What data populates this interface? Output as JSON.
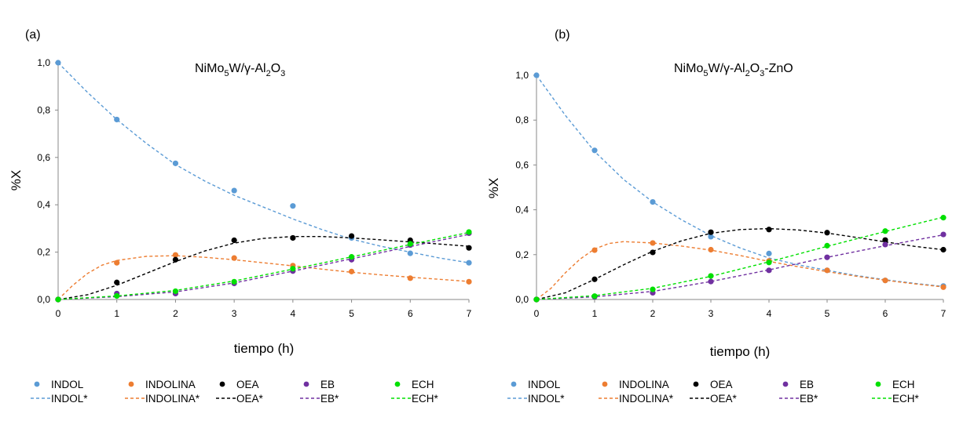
{
  "chart_data": [
    {
      "panel_label": "(a)",
      "type": "scatter",
      "title": {
        "base1": "NiMo",
        "sub1": "5",
        "base2": "W/γ-Al",
        "sub2": "2",
        "base3": "O",
        "sub3": "3",
        "base4": ""
      },
      "xlabel": "tiempo (h)",
      "ylabel": "%X",
      "xlim": [
        0,
        7
      ],
      "ylim": [
        0,
        1
      ],
      "xticks": [
        "0",
        "1",
        "2",
        "3",
        "4",
        "5",
        "6",
        "7"
      ],
      "yticks": [
        "0,0",
        "0,2",
        "0,4",
        "0,6",
        "0,8",
        "1,0"
      ],
      "x": [
        0,
        1,
        2,
        3,
        4,
        5,
        6,
        7
      ],
      "series": [
        {
          "name": "INDOL",
          "fit_name": "INDOL*",
          "color": "#5b9bd5",
          "values": [
            1.0,
            0.76,
            0.575,
            0.46,
            0.395,
            0.26,
            0.195,
            0.155
          ],
          "fit": [
            [
              0,
              1.0
            ],
            [
              0.5,
              0.875
            ],
            [
              1,
              0.76
            ],
            [
              1.5,
              0.66
            ],
            [
              2,
              0.57
            ],
            [
              2.5,
              0.5
            ],
            [
              3,
              0.44
            ],
            [
              3.5,
              0.39
            ],
            [
              4,
              0.34
            ],
            [
              4.5,
              0.295
            ],
            [
              5,
              0.255
            ],
            [
              5.5,
              0.225
            ],
            [
              6,
              0.2
            ],
            [
              6.5,
              0.175
            ],
            [
              7,
              0.155
            ]
          ]
        },
        {
          "name": "INDOLINA",
          "fit_name": "INDOLINA*",
          "color": "#ed7d31",
          "values": [
            0.0,
            0.155,
            0.188,
            0.175,
            0.143,
            0.118,
            0.09,
            0.075
          ],
          "fit": [
            [
              0,
              0.0
            ],
            [
              0.25,
              0.06
            ],
            [
              0.5,
              0.11
            ],
            [
              0.75,
              0.145
            ],
            [
              1,
              0.165
            ],
            [
              1.5,
              0.182
            ],
            [
              2,
              0.185
            ],
            [
              2.5,
              0.178
            ],
            [
              3,
              0.168
            ],
            [
              3.5,
              0.155
            ],
            [
              4,
              0.142
            ],
            [
              4.5,
              0.128
            ],
            [
              5,
              0.115
            ],
            [
              5.5,
              0.104
            ],
            [
              6,
              0.094
            ],
            [
              6.5,
              0.085
            ],
            [
              7,
              0.076
            ]
          ]
        },
        {
          "name": "OEA",
          "fit_name": "OEA*",
          "color": "#000000",
          "values": [
            0.0,
            0.072,
            0.168,
            0.25,
            0.26,
            0.268,
            0.25,
            0.218
          ],
          "fit": [
            [
              0,
              0.0
            ],
            [
              0.5,
              0.02
            ],
            [
              1,
              0.06
            ],
            [
              1.5,
              0.11
            ],
            [
              2,
              0.16
            ],
            [
              2.5,
              0.205
            ],
            [
              3,
              0.238
            ],
            [
              3.5,
              0.258
            ],
            [
              4,
              0.266
            ],
            [
              4.5,
              0.266
            ],
            [
              5,
              0.26
            ],
            [
              5.5,
              0.252
            ],
            [
              6,
              0.243
            ],
            [
              6.5,
              0.234
            ],
            [
              7,
              0.225
            ]
          ]
        },
        {
          "name": "EB",
          "fit_name": "EB*",
          "color": "#7030a0",
          "values": [
            0.0,
            0.025,
            0.025,
            0.068,
            0.12,
            0.168,
            0.23,
            0.28
          ],
          "fit": [
            [
              0,
              0.0
            ],
            [
              1,
              0.012
            ],
            [
              2,
              0.032
            ],
            [
              3,
              0.07
            ],
            [
              4,
              0.12
            ],
            [
              5,
              0.172
            ],
            [
              6,
              0.224
            ],
            [
              7,
              0.275
            ]
          ]
        },
        {
          "name": "ECH",
          "fit_name": "ECH*",
          "color": "#00e000",
          "values": [
            0.0,
            0.015,
            0.035,
            0.075,
            0.13,
            0.18,
            0.235,
            0.285
          ],
          "fit": [
            [
              0,
              0.0
            ],
            [
              1,
              0.015
            ],
            [
              2,
              0.038
            ],
            [
              3,
              0.078
            ],
            [
              4,
              0.128
            ],
            [
              5,
              0.18
            ],
            [
              6,
              0.232
            ],
            [
              7,
              0.283
            ]
          ]
        }
      ]
    },
    {
      "panel_label": "(b)",
      "type": "scatter",
      "title": {
        "base1": "NiMo",
        "sub1": "5",
        "base2": "W/γ-Al",
        "sub2": "2",
        "base3": "O",
        "sub3": "3",
        "base4": "-ZnO"
      },
      "xlabel": "tiempo (h)",
      "ylabel": "%X",
      "xlim": [
        0,
        7
      ],
      "ylim": [
        0,
        1
      ],
      "xticks": [
        "0",
        "1",
        "2",
        "3",
        "4",
        "5",
        "6",
        "7"
      ],
      "yticks": [
        "0,0",
        "0,2",
        "0,4",
        "0,6",
        "0,8",
        "1,0"
      ],
      "x": [
        0,
        1,
        2,
        3,
        4,
        5,
        6,
        7
      ],
      "series": [
        {
          "name": "INDOL",
          "fit_name": "INDOL*",
          "color": "#5b9bd5",
          "values": [
            1.0,
            0.665,
            0.435,
            0.28,
            0.205,
            0.13,
            0.085,
            0.06
          ],
          "fit": [
            [
              0,
              1.0
            ],
            [
              0.5,
              0.82
            ],
            [
              1,
              0.66
            ],
            [
              1.5,
              0.535
            ],
            [
              2,
              0.435
            ],
            [
              2.5,
              0.355
            ],
            [
              3,
              0.285
            ],
            [
              3.5,
              0.23
            ],
            [
              4,
              0.185
            ],
            [
              4.5,
              0.155
            ],
            [
              5,
              0.13
            ],
            [
              5.5,
              0.107
            ],
            [
              6,
              0.088
            ],
            [
              6.5,
              0.072
            ],
            [
              7,
              0.058
            ]
          ]
        },
        {
          "name": "INDOLINA",
          "fit_name": "INDOLINA*",
          "color": "#ed7d31",
          "values": [
            0.0,
            0.22,
            0.252,
            0.222,
            0.172,
            0.13,
            0.085,
            0.055
          ],
          "fit": [
            [
              0,
              0.0
            ],
            [
              0.25,
              0.05
            ],
            [
              0.5,
              0.12
            ],
            [
              0.75,
              0.18
            ],
            [
              1,
              0.225
            ],
            [
              1.25,
              0.25
            ],
            [
              1.5,
              0.258
            ],
            [
              2,
              0.252
            ],
            [
              2.5,
              0.238
            ],
            [
              3,
              0.22
            ],
            [
              3.5,
              0.196
            ],
            [
              4,
              0.17
            ],
            [
              4.5,
              0.146
            ],
            [
              5,
              0.124
            ],
            [
              5.5,
              0.104
            ],
            [
              6,
              0.086
            ],
            [
              6.5,
              0.07
            ],
            [
              7,
              0.056
            ]
          ]
        },
        {
          "name": "OEA",
          "fit_name": "OEA*",
          "color": "#000000",
          "values": [
            0.0,
            0.09,
            0.21,
            0.3,
            0.312,
            0.298,
            0.265,
            0.222
          ],
          "fit": [
            [
              0,
              0.0
            ],
            [
              0.5,
              0.03
            ],
            [
              1,
              0.09
            ],
            [
              1.5,
              0.155
            ],
            [
              2,
              0.215
            ],
            [
              2.5,
              0.262
            ],
            [
              3,
              0.295
            ],
            [
              3.5,
              0.312
            ],
            [
              4,
              0.316
            ],
            [
              4.5,
              0.31
            ],
            [
              5,
              0.296
            ],
            [
              5.5,
              0.277
            ],
            [
              6,
              0.257
            ],
            [
              6.5,
              0.237
            ],
            [
              7,
              0.222
            ]
          ]
        },
        {
          "name": "EB",
          "fit_name": "EB*",
          "color": "#7030a0",
          "values": [
            0.0,
            0.012,
            0.03,
            0.08,
            0.13,
            0.188,
            0.245,
            0.29
          ],
          "fit": [
            [
              0,
              0.0
            ],
            [
              1,
              0.012
            ],
            [
              2,
              0.036
            ],
            [
              3,
              0.08
            ],
            [
              4,
              0.132
            ],
            [
              5,
              0.188
            ],
            [
              6,
              0.24
            ],
            [
              7,
              0.288
            ]
          ]
        },
        {
          "name": "ECH",
          "fit_name": "ECH*",
          "color": "#00e000",
          "values": [
            0.0,
            0.015,
            0.045,
            0.105,
            0.165,
            0.24,
            0.305,
            0.365
          ],
          "fit": [
            [
              0,
              0.0
            ],
            [
              1,
              0.017
            ],
            [
              2,
              0.05
            ],
            [
              3,
              0.103
            ],
            [
              4,
              0.168
            ],
            [
              5,
              0.237
            ],
            [
              6,
              0.303
            ],
            [
              7,
              0.367
            ]
          ]
        }
      ]
    }
  ]
}
